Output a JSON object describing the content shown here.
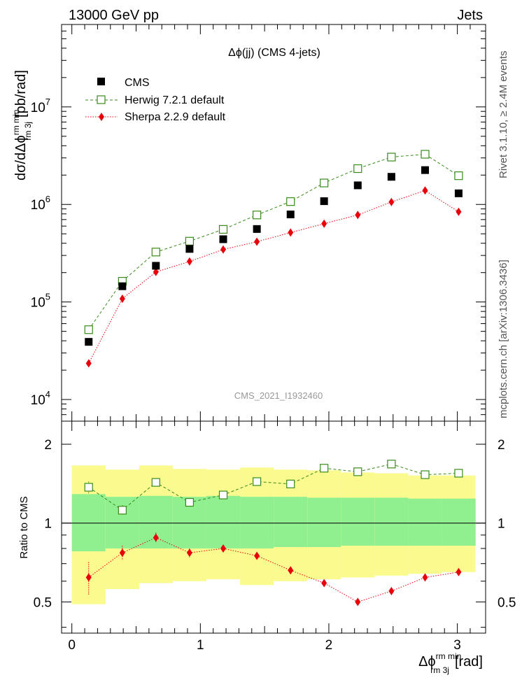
{
  "header": {
    "left": "13000 GeV pp",
    "right": "Jets"
  },
  "side_labels": {
    "upper": "Rivet 3.1.10, ≥ 2.4M events",
    "lower": "mcplots.cern.ch [arXiv:1306.3436]"
  },
  "watermark": "CMS_2021_I1932460",
  "colors": {
    "cms": "#000000",
    "herwig": "#3a8a1a",
    "sherpa": "#e8000b",
    "band_inner": "#90f090",
    "band_outer": "#fafa8f"
  },
  "chart_data": [
    {
      "type": "scatter",
      "title": "Δϕ(jj) (CMS 4-jets)",
      "ylabel": {
        "main": "dσ/dΔϕ",
        "sup": "rm min",
        "sub": "rm 3j",
        "unit": "[pb/rad]"
      },
      "yscale": "log",
      "ylim": [
        6000,
        70000000
      ],
      "xlim": [
        -0.08,
        3.22
      ],
      "yticks": [
        {
          "value": 10000,
          "label": "10",
          "exp": "4"
        },
        {
          "value": 100000,
          "label": "10",
          "exp": "5"
        },
        {
          "value": 1000000,
          "label": "10",
          "exp": "6"
        },
        {
          "value": 10000000,
          "label": "10",
          "exp": "7"
        }
      ],
      "legend_position": "top-left",
      "x": [
        0.131,
        0.393,
        0.654,
        0.916,
        1.178,
        1.44,
        1.702,
        1.963,
        2.225,
        2.487,
        2.749,
        3.01
      ],
      "series": [
        {
          "name": "CMS",
          "style": "filled-square",
          "values": [
            39000,
            145000,
            235000,
            350000,
            440000,
            560000,
            790000,
            1080000,
            1570000,
            1920000,
            2250000,
            1300000
          ]
        },
        {
          "name": "Herwig 7.2.1 default",
          "style": "open-square-dashed",
          "values": [
            52000,
            163000,
            325000,
            420000,
            555000,
            780000,
            1070000,
            1660000,
            2330000,
            3060000,
            3270000,
            1970000
          ]
        },
        {
          "name": "Sherpa 2.2.9 default",
          "style": "diamond-dotted",
          "values": [
            23500,
            108000,
            203000,
            260000,
            345000,
            415000,
            515000,
            635000,
            780000,
            1060000,
            1390000,
            840000
          ]
        }
      ]
    },
    {
      "type": "line",
      "ylabel": "Ratio to CMS",
      "xlabel": {
        "main": "Δϕ",
        "sup": "rm min",
        "sub": "rm 3j",
        "unit": "[rad]"
      },
      "yscale": "log",
      "ylim": [
        0.38,
        2.45
      ],
      "xlim": [
        -0.08,
        3.22
      ],
      "yticks": [
        {
          "value": 0.5,
          "label": "0.5"
        },
        {
          "value": 1,
          "label": "1"
        },
        {
          "value": 2,
          "label": "2"
        }
      ],
      "xticks": [
        {
          "value": 0,
          "label": "0"
        },
        {
          "value": 1,
          "label": "1"
        },
        {
          "value": 2,
          "label": "2"
        },
        {
          "value": 3,
          "label": "3"
        }
      ],
      "reference_line": 1,
      "bin_edges": [
        0,
        0.262,
        0.524,
        0.785,
        1.047,
        1.309,
        1.571,
        1.833,
        2.094,
        2.356,
        2.618,
        2.88,
        3.142
      ],
      "band_inner": {
        "low": [
          0.78,
          0.8,
          0.8,
          0.8,
          0.8,
          0.8,
          0.81,
          0.81,
          0.82,
          0.82,
          0.82,
          0.82
        ],
        "high": [
          1.29,
          1.26,
          1.27,
          1.26,
          1.27,
          1.26,
          1.26,
          1.25,
          1.25,
          1.25,
          1.24,
          1.24
        ]
      },
      "band_outer": {
        "low": [
          0.49,
          0.56,
          0.59,
          0.6,
          0.61,
          0.58,
          0.6,
          0.61,
          0.62,
          0.63,
          0.64,
          0.65
        ],
        "high": [
          1.66,
          1.6,
          1.66,
          1.61,
          1.6,
          1.63,
          1.6,
          1.59,
          1.56,
          1.55,
          1.52,
          1.52
        ]
      },
      "series": [
        {
          "name": "Herwig 7.2.1 default",
          "values": [
            1.37,
            1.12,
            1.43,
            1.2,
            1.28,
            1.44,
            1.41,
            1.62,
            1.57,
            1.68,
            1.53,
            1.55
          ],
          "err": [
            0.07,
            0.05,
            0.03,
            0.02,
            0.02,
            0.02,
            0.02,
            0.02,
            0.02,
            0.02,
            0.02,
            0.02
          ]
        },
        {
          "name": "Sherpa 2.2.9 default",
          "values": [
            0.62,
            0.77,
            0.88,
            0.77,
            0.8,
            0.75,
            0.66,
            0.59,
            0.5,
            0.55,
            0.62,
            0.65
          ],
          "err": [
            0.09,
            0.05,
            0.04,
            0.03,
            0.02,
            0.02,
            0.02,
            0.02,
            0.02,
            0.02,
            0.02,
            0.02
          ]
        }
      ]
    }
  ]
}
